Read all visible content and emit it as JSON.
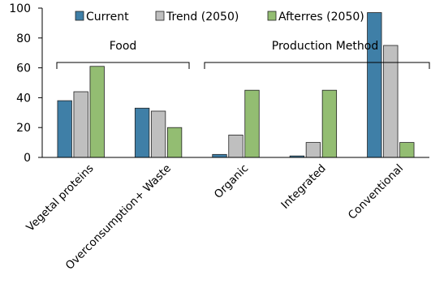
{
  "chart_data": {
    "type": "bar",
    "categories": [
      "Vegetal proteins",
      "Overconsumption+ Waste",
      "Organic",
      "Integrated",
      "Conventional"
    ],
    "series": [
      {
        "name": "Current",
        "values": [
          38,
          33,
          2,
          1,
          97
        ],
        "color": "#3f7fa7"
      },
      {
        "name": "Trend (2050)",
        "values": [
          44,
          31,
          15,
          10,
          75
        ],
        "color": "#bfbfbf"
      },
      {
        "name": "Afterres (2050)",
        "values": [
          61,
          20,
          45,
          45,
          10
        ],
        "color": "#93bd72"
      }
    ],
    "ylim": [
      0,
      100
    ],
    "yticks": [
      0,
      20,
      40,
      60,
      80,
      100
    ],
    "legend_position": "top",
    "groups": [
      {
        "label": "Food",
        "categories": [
          "Vegetal proteins",
          "Overconsumption+ Waste"
        ]
      },
      {
        "label": "Production Method",
        "categories": [
          "Organic",
          "Integrated",
          "Conventional"
        ]
      }
    ],
    "grid": false
  }
}
